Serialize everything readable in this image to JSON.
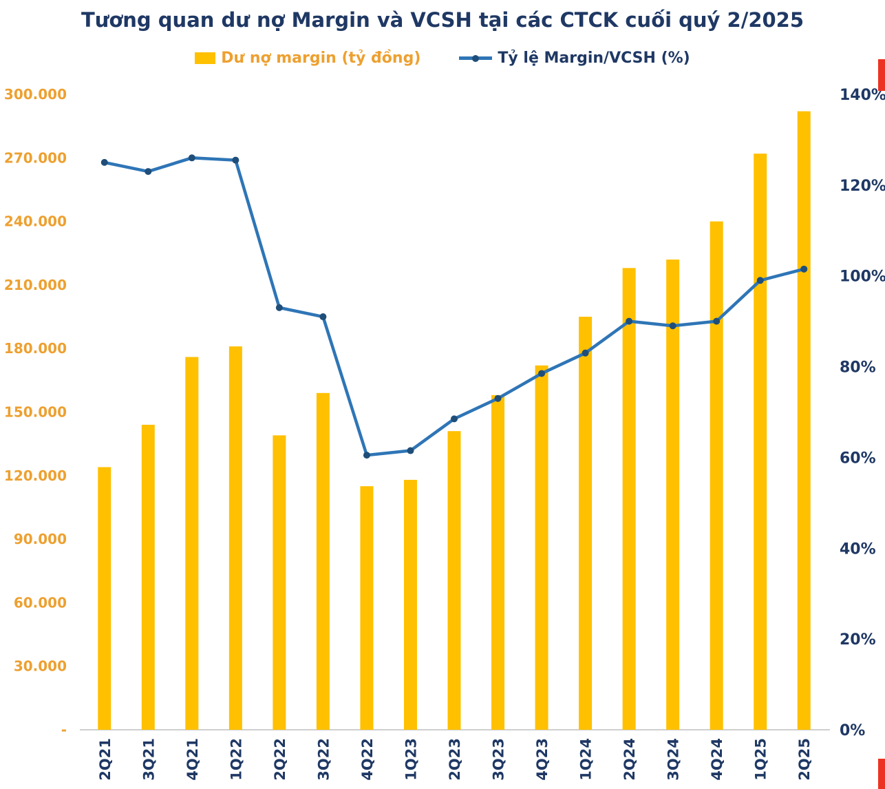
{
  "title": "Tương quan dư nợ Margin và VCSH tại các CTCK cuối quý 2/2025",
  "legend": [
    {
      "label": "Dư nợ margin (tỷ đồng)",
      "type": "bar"
    },
    {
      "label": "Tỷ lệ Margin/VCSH (%)",
      "type": "line"
    }
  ],
  "colors": {
    "bar": "#FFC000",
    "line": "#2E75B6",
    "marker": "#1F4E79",
    "navy": "#1F3864",
    "axis_orange": "#EDA030",
    "scrollbar": "#EC3323"
  },
  "chart_data": {
    "type": "bar",
    "subtype": "combo-bar-line",
    "title": "Tương quan dư nợ Margin và VCSH tại các CTCK cuối quý 2/2025",
    "categories": [
      "2Q21",
      "3Q21",
      "4Q21",
      "1Q22",
      "2Q22",
      "3Q22",
      "4Q22",
      "1Q23",
      "2Q23",
      "3Q23",
      "4Q23",
      "1Q24",
      "2Q24",
      "3Q24",
      "4Q24",
      "1Q25",
      "2Q25"
    ],
    "series": [
      {
        "name": "Dư nợ margin (tỷ đồng)",
        "type": "bar",
        "axis": "left",
        "color": "#FFC000",
        "values": [
          124000,
          144000,
          176000,
          181000,
          139000,
          159000,
          115000,
          118000,
          141000,
          158000,
          172000,
          195000,
          218000,
          222000,
          240000,
          272000,
          292000
        ]
      },
      {
        "name": "Tỷ lệ Margin/VCSH (%)",
        "type": "line",
        "axis": "right",
        "color": "#2E75B6",
        "marker_color": "#1F4E79",
        "values": [
          125,
          123,
          126,
          125.5,
          93,
          91,
          60.5,
          61.5,
          68.5,
          73,
          78.5,
          83,
          90,
          89,
          90,
          99,
          101.5
        ]
      }
    ],
    "left_axis": {
      "min": 0,
      "max": 300000,
      "step": 30000,
      "tick_labels": [
        "-",
        "30.000",
        "60.000",
        "90.000",
        "120.000",
        "150.000",
        "180.000",
        "210.000",
        "240.000",
        "270.000",
        "300.000"
      ],
      "label_color": "#EDA030"
    },
    "right_axis": {
      "min": 0,
      "max": 140,
      "step": 20,
      "tick_labels": [
        "0%",
        "20%",
        "40%",
        "60%",
        "80%",
        "100%",
        "120%",
        "140%"
      ],
      "label_color": "#1F3864"
    },
    "grid": false,
    "legend_position": "top"
  }
}
